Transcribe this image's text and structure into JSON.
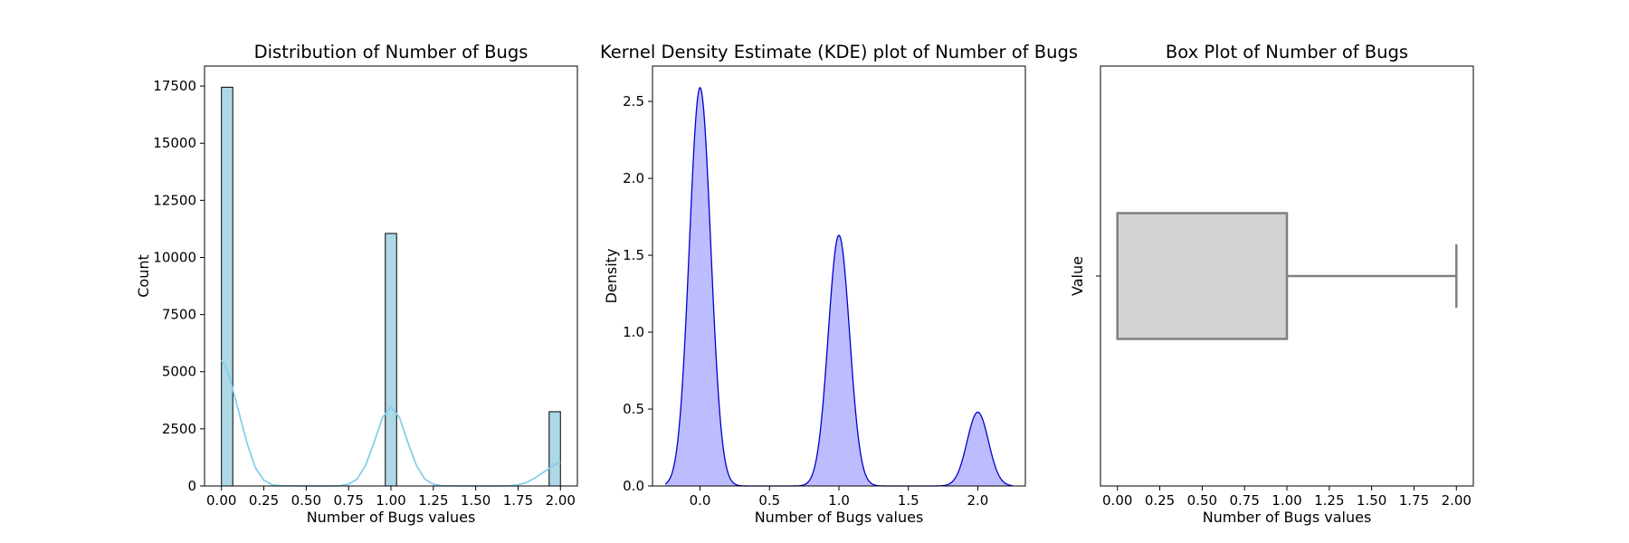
{
  "chart_data": [
    {
      "type": "bar",
      "title": "Distribution of Number of Bugs",
      "xlabel": "Number of Bugs values",
      "ylabel": "Count",
      "xlim": [
        -0.1,
        2.1
      ],
      "ylim": [
        0,
        18375
      ],
      "xticks": [
        0.0,
        0.25,
        0.5,
        0.75,
        1.0,
        1.25,
        1.5,
        1.75,
        2.0
      ],
      "xtick_labels": [
        "0.00",
        "0.25",
        "0.50",
        "0.75",
        "1.00",
        "1.25",
        "1.50",
        "1.75",
        "2.00"
      ],
      "yticks": [
        0,
        2500,
        5000,
        7500,
        10000,
        12500,
        15000,
        17500
      ],
      "ytick_labels": [
        "0",
        "2500",
        "5000",
        "7500",
        "10000",
        "12500",
        "15000",
        "17500"
      ],
      "bin_width": 0.0667,
      "bins": [
        {
          "x0": 0.0,
          "count": 17450
        },
        {
          "x0": 0.9667,
          "count": 11050
        },
        {
          "x0": 1.9333,
          "count": 3250
        }
      ],
      "bar_color": "#add8e6",
      "kde_overlay": {
        "color": "#87ceeb",
        "x": [
          0.0,
          0.02,
          0.05,
          0.1,
          0.15,
          0.2,
          0.25,
          0.3,
          0.35,
          0.6,
          0.7,
          0.75,
          0.8,
          0.85,
          0.9,
          0.95,
          1.0,
          1.05,
          1.1,
          1.15,
          1.2,
          1.25,
          1.3,
          1.6,
          1.7,
          1.75,
          1.8,
          1.85,
          1.9,
          1.95,
          2.0
        ],
        "y": [
          5500,
          5300,
          4700,
          3300,
          1900,
          800,
          250,
          50,
          10,
          0,
          10,
          80,
          300,
          900,
          1900,
          3000,
          3450,
          3000,
          1900,
          900,
          300,
          80,
          10,
          0,
          10,
          50,
          150,
          350,
          600,
          850,
          1050
        ]
      }
    },
    {
      "type": "area",
      "title": "Kernel Density Estimate (KDE) plot of Number of Bugs",
      "xlabel": "Number of Bugs values",
      "ylabel": "Density",
      "xlim": [
        -0.3425,
        2.3425
      ],
      "ylim": [
        0,
        2.73
      ],
      "xticks": [
        0.0,
        0.5,
        1.0,
        1.5,
        2.0
      ],
      "xtick_labels": [
        "0.0",
        "0.5",
        "1.0",
        "1.5",
        "2.0"
      ],
      "yticks": [
        0.0,
        0.5,
        1.0,
        1.5,
        2.0,
        2.5
      ],
      "ytick_labels": [
        "0.0",
        "0.5",
        "1.0",
        "1.5",
        "2.0",
        "2.5"
      ],
      "line_color": "#0000cd",
      "fill_color": "#b0b0ff",
      "peaks": [
        {
          "center": 0.0,
          "height": 2.59,
          "sigma": 0.077
        },
        {
          "center": 1.0,
          "height": 1.63,
          "sigma": 0.077
        },
        {
          "center": 2.0,
          "height": 0.48,
          "sigma": 0.077
        }
      ],
      "range": [
        -0.25,
        2.25
      ]
    },
    {
      "type": "box",
      "title": "Box Plot of Number of Bugs",
      "xlabel": "Number of Bugs values",
      "ylabel": "Value",
      "xlim": [
        -0.1,
        2.1
      ],
      "xticks": [
        0.0,
        0.25,
        0.5,
        0.75,
        1.0,
        1.25,
        1.5,
        1.75,
        2.0
      ],
      "xtick_labels": [
        "0.00",
        "0.25",
        "0.50",
        "0.75",
        "1.00",
        "1.25",
        "1.50",
        "1.75",
        "2.00"
      ],
      "min": 0.0,
      "q1": 0.0,
      "median": 0.0,
      "q3": 1.0,
      "max": 2.0,
      "box_color": "#d3d3d3",
      "line_color": "#808080"
    }
  ]
}
